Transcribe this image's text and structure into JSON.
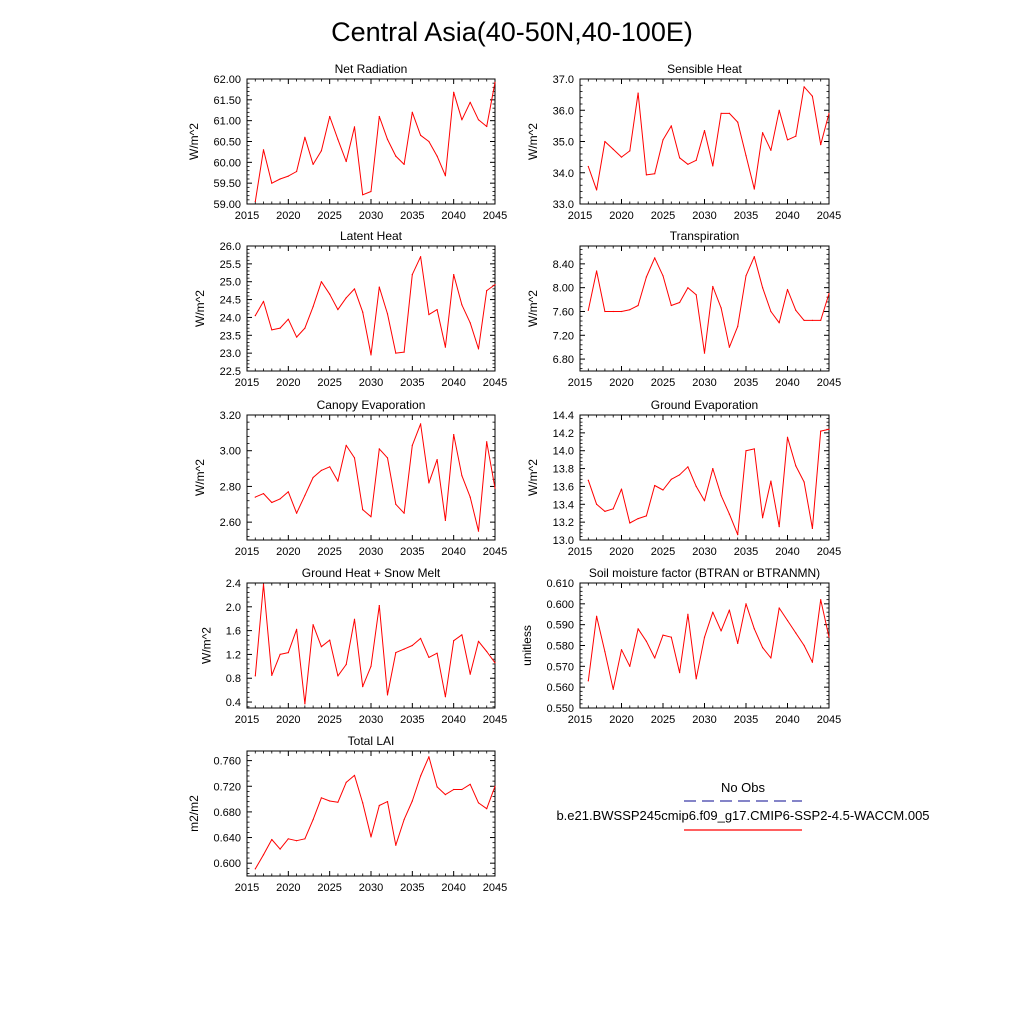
{
  "title": "Central Asia(40-50N,40-100E)",
  "legend": {
    "obs_label": "No Obs",
    "model_label": "b.e21.BWSSP245cmip6.f09_g17.CMIP6-SSP2-4.5-WACCM.005",
    "obs_color": "#3a3aa8",
    "model_color": "#ff0000"
  },
  "chart_data": [
    {
      "type": "line",
      "title": "Net Radiation",
      "ylabel": "W/m^2",
      "xlim": [
        2015,
        2045
      ],
      "ylim": [
        59.0,
        62.0
      ],
      "xticks": [
        "2015",
        "2020",
        "2025",
        "2030",
        "2035",
        "2040",
        "2045"
      ],
      "yticks": [
        "59.00",
        "59.50",
        "60.00",
        "60.50",
        "61.00",
        "61.50",
        "62.00"
      ],
      "x": [
        2016,
        2017,
        2018,
        2019,
        2020,
        2021,
        2022,
        2023,
        2024,
        2025,
        2026,
        2027,
        2028,
        2029,
        2030,
        2031,
        2032,
        2033,
        2034,
        2035,
        2036,
        2037,
        2038,
        2039,
        2040,
        2041,
        2042,
        2043,
        2044,
        2045
      ],
      "values": [
        59.06,
        60.3,
        59.5,
        59.6,
        59.67,
        59.78,
        60.6,
        59.95,
        60.28,
        61.1,
        60.55,
        60.02,
        60.85,
        59.22,
        59.3,
        61.1,
        60.55,
        60.15,
        59.95,
        61.2,
        60.65,
        60.5,
        60.15,
        59.68,
        61.68,
        61.02,
        61.44,
        61.02,
        60.86,
        61.92
      ]
    },
    {
      "type": "line",
      "title": "Sensible Heat",
      "ylabel": "W/m^2",
      "xlim": [
        2015,
        2045
      ],
      "ylim": [
        33.0,
        37.0
      ],
      "xticks": [
        "2015",
        "2020",
        "2025",
        "2030",
        "2035",
        "2040",
        "2045"
      ],
      "yticks": [
        "33.0",
        "34.0",
        "35.0",
        "36.0",
        "37.0"
      ],
      "x": [
        2016,
        2017,
        2018,
        2019,
        2020,
        2021,
        2022,
        2023,
        2024,
        2025,
        2026,
        2027,
        2028,
        2029,
        2030,
        2031,
        2032,
        2033,
        2034,
        2035,
        2036,
        2037,
        2038,
        2039,
        2040,
        2041,
        2042,
        2043,
        2044,
        2045
      ],
      "values": [
        34.2,
        33.45,
        35.0,
        34.75,
        34.5,
        34.7,
        36.55,
        33.93,
        33.97,
        35.05,
        35.5,
        34.48,
        34.27,
        34.4,
        35.35,
        34.22,
        35.9,
        35.9,
        35.62,
        34.55,
        33.48,
        35.28,
        34.72,
        36.0,
        35.05,
        35.17,
        36.75,
        36.45,
        34.9,
        35.9
      ]
    },
    {
      "type": "line",
      "title": "Latent Heat",
      "ylabel": "W/m^2",
      "xlim": [
        2015,
        2045
      ],
      "ylim": [
        22.5,
        26.0
      ],
      "xticks": [
        "2015",
        "2020",
        "2025",
        "2030",
        "2035",
        "2040",
        "2045"
      ],
      "yticks": [
        "22.5",
        "23.0",
        "23.5",
        "24.0",
        "24.5",
        "25.0",
        "25.5",
        "26.0"
      ],
      "x": [
        2016,
        2017,
        2018,
        2019,
        2020,
        2021,
        2022,
        2023,
        2024,
        2025,
        2026,
        2027,
        2028,
        2029,
        2030,
        2031,
        2032,
        2033,
        2034,
        2035,
        2036,
        2037,
        2038,
        2039,
        2040,
        2041,
        2042,
        2043,
        2044,
        2045
      ],
      "values": [
        24.05,
        24.45,
        23.65,
        23.7,
        23.95,
        23.45,
        23.7,
        24.3,
        25.0,
        24.65,
        24.22,
        24.55,
        24.8,
        24.15,
        22.95,
        24.85,
        24.1,
        23.0,
        23.03,
        25.2,
        25.7,
        24.08,
        24.22,
        23.17,
        25.2,
        24.35,
        23.85,
        23.12,
        24.75,
        24.92
      ]
    },
    {
      "type": "line",
      "title": "Transpiration",
      "ylabel": "W/m^2",
      "xlim": [
        2015,
        2045
      ],
      "ylim": [
        6.6,
        8.7
      ],
      "xticks": [
        "2015",
        "2020",
        "2025",
        "2030",
        "2035",
        "2040",
        "2045"
      ],
      "yticks": [
        "6.80",
        "7.20",
        "7.60",
        "8.00",
        "8.40"
      ],
      "x": [
        2016,
        2017,
        2018,
        2019,
        2020,
        2021,
        2022,
        2023,
        2024,
        2025,
        2026,
        2027,
        2028,
        2029,
        2030,
        2031,
        2032,
        2033,
        2034,
        2035,
        2036,
        2037,
        2038,
        2039,
        2040,
        2041,
        2042,
        2043,
        2044,
        2045
      ],
      "values": [
        7.62,
        8.28,
        7.6,
        7.6,
        7.6,
        7.63,
        7.7,
        8.18,
        8.5,
        8.2,
        7.7,
        7.75,
        8.0,
        7.88,
        6.9,
        8.02,
        7.66,
        7.0,
        7.35,
        8.2,
        8.52,
        8.0,
        7.6,
        7.41,
        7.97,
        7.62,
        7.45,
        7.45,
        7.45,
        7.9
      ]
    },
    {
      "type": "line",
      "title": "Canopy Evaporation",
      "ylabel": "W/m^2",
      "xlim": [
        2015,
        2045
      ],
      "ylim": [
        2.5,
        3.2
      ],
      "xticks": [
        "2015",
        "2020",
        "2025",
        "2030",
        "2035",
        "2040",
        "2045"
      ],
      "yticks": [
        "2.60",
        "2.80",
        "3.00",
        "3.20"
      ],
      "x": [
        2016,
        2017,
        2018,
        2019,
        2020,
        2021,
        2022,
        2023,
        2024,
        2025,
        2026,
        2027,
        2028,
        2029,
        2030,
        2031,
        2032,
        2033,
        2034,
        2035,
        2036,
        2037,
        2038,
        2039,
        2040,
        2041,
        2042,
        2043,
        2044,
        2045
      ],
      "values": [
        2.74,
        2.76,
        2.71,
        2.73,
        2.77,
        2.65,
        2.75,
        2.85,
        2.89,
        2.91,
        2.83,
        3.03,
        2.96,
        2.67,
        2.63,
        3.01,
        2.96,
        2.7,
        2.65,
        3.03,
        3.15,
        2.82,
        2.95,
        2.61,
        3.09,
        2.86,
        2.74,
        2.55,
        3.05,
        2.79
      ]
    },
    {
      "type": "line",
      "title": "Ground Evaporation",
      "ylabel": "W/m^2",
      "xlim": [
        2015,
        2045
      ],
      "ylim": [
        13.0,
        14.4
      ],
      "xticks": [
        "2015",
        "2020",
        "2025",
        "2030",
        "2035",
        "2040",
        "2045"
      ],
      "yticks": [
        "13.0",
        "13.2",
        "13.4",
        "13.6",
        "13.8",
        "14.0",
        "14.2",
        "14.4"
      ],
      "x": [
        2016,
        2017,
        2018,
        2019,
        2020,
        2021,
        2022,
        2023,
        2024,
        2025,
        2026,
        2027,
        2028,
        2029,
        2030,
        2031,
        2032,
        2033,
        2034,
        2035,
        2036,
        2037,
        2038,
        2039,
        2040,
        2041,
        2042,
        2043,
        2044,
        2045
      ],
      "values": [
        13.67,
        13.4,
        13.32,
        13.35,
        13.57,
        13.19,
        13.24,
        13.27,
        13.61,
        13.56,
        13.68,
        13.73,
        13.82,
        13.6,
        13.44,
        13.8,
        13.5,
        13.29,
        13.06,
        14.0,
        14.02,
        13.25,
        13.66,
        13.15,
        14.15,
        13.83,
        13.65,
        13.13,
        14.22,
        14.24
      ]
    },
    {
      "type": "line",
      "title": "Ground Heat + Snow Melt",
      "ylabel": "W/m^2",
      "xlim": [
        2015,
        2045
      ],
      "ylim": [
        0.3,
        2.4
      ],
      "xticks": [
        "2015",
        "2020",
        "2025",
        "2030",
        "2035",
        "2040",
        "2045"
      ],
      "yticks": [
        "0.4",
        "0.8",
        "1.2",
        "1.6",
        "2.0",
        "2.4"
      ],
      "x": [
        2016,
        2017,
        2018,
        2019,
        2020,
        2021,
        2022,
        2023,
        2024,
        2025,
        2026,
        2027,
        2028,
        2029,
        2030,
        2031,
        2032,
        2033,
        2034,
        2035,
        2036,
        2037,
        2038,
        2039,
        2040,
        2041,
        2042,
        2043,
        2044,
        2045
      ],
      "values": [
        0.84,
        2.38,
        0.85,
        1.2,
        1.23,
        1.62,
        0.37,
        1.7,
        1.33,
        1.44,
        0.84,
        1.03,
        1.79,
        0.66,
        1.0,
        2.02,
        0.52,
        1.23,
        1.29,
        1.35,
        1.47,
        1.15,
        1.22,
        0.49,
        1.43,
        1.53,
        0.87,
        1.42,
        1.25,
        1.06
      ]
    },
    {
      "type": "line",
      "title": "Soil moisture factor (BTRAN or BTRANMN)",
      "ylabel": "unitless",
      "xlim": [
        2015,
        2045
      ],
      "ylim": [
        0.55,
        0.61
      ],
      "xticks": [
        "2015",
        "2020",
        "2025",
        "2030",
        "2035",
        "2040",
        "2045"
      ],
      "yticks": [
        "0.550",
        "0.560",
        "0.570",
        "0.580",
        "0.590",
        "0.600",
        "0.610"
      ],
      "x": [
        2016,
        2017,
        2018,
        2019,
        2020,
        2021,
        2022,
        2023,
        2024,
        2025,
        2026,
        2027,
        2028,
        2029,
        2030,
        2031,
        2032,
        2033,
        2034,
        2035,
        2036,
        2037,
        2038,
        2039,
        2040,
        2041,
        2042,
        2043,
        2044,
        2045
      ],
      "values": [
        0.563,
        0.594,
        0.577,
        0.559,
        0.578,
        0.57,
        0.588,
        0.582,
        0.574,
        0.585,
        0.584,
        0.567,
        0.595,
        0.564,
        0.584,
        0.596,
        0.587,
        0.597,
        0.581,
        0.6,
        0.588,
        0.579,
        0.574,
        0.598,
        0.592,
        0.586,
        0.58,
        0.572,
        0.602,
        0.584
      ]
    },
    {
      "type": "line",
      "title": "Total LAI",
      "ylabel": "m2/m2",
      "xlim": [
        2015,
        2045
      ],
      "ylim": [
        0.58,
        0.775
      ],
      "xticks": [
        "2015",
        "2020",
        "2025",
        "2030",
        "2035",
        "2040",
        "2045"
      ],
      "yticks": [
        "0.600",
        "0.640",
        "0.680",
        "0.720",
        "0.760"
      ],
      "x": [
        2016,
        2017,
        2018,
        2019,
        2020,
        2021,
        2022,
        2023,
        2024,
        2025,
        2026,
        2027,
        2028,
        2029,
        2030,
        2031,
        2032,
        2033,
        2034,
        2035,
        2036,
        2037,
        2038,
        2039,
        2040,
        2041,
        2042,
        2043,
        2044,
        2045
      ],
      "values": [
        0.591,
        0.613,
        0.637,
        0.622,
        0.638,
        0.635,
        0.638,
        0.668,
        0.702,
        0.697,
        0.695,
        0.726,
        0.737,
        0.694,
        0.641,
        0.69,
        0.696,
        0.628,
        0.668,
        0.697,
        0.736,
        0.766,
        0.719,
        0.707,
        0.715,
        0.715,
        0.723,
        0.694,
        0.685,
        0.72
      ]
    }
  ]
}
